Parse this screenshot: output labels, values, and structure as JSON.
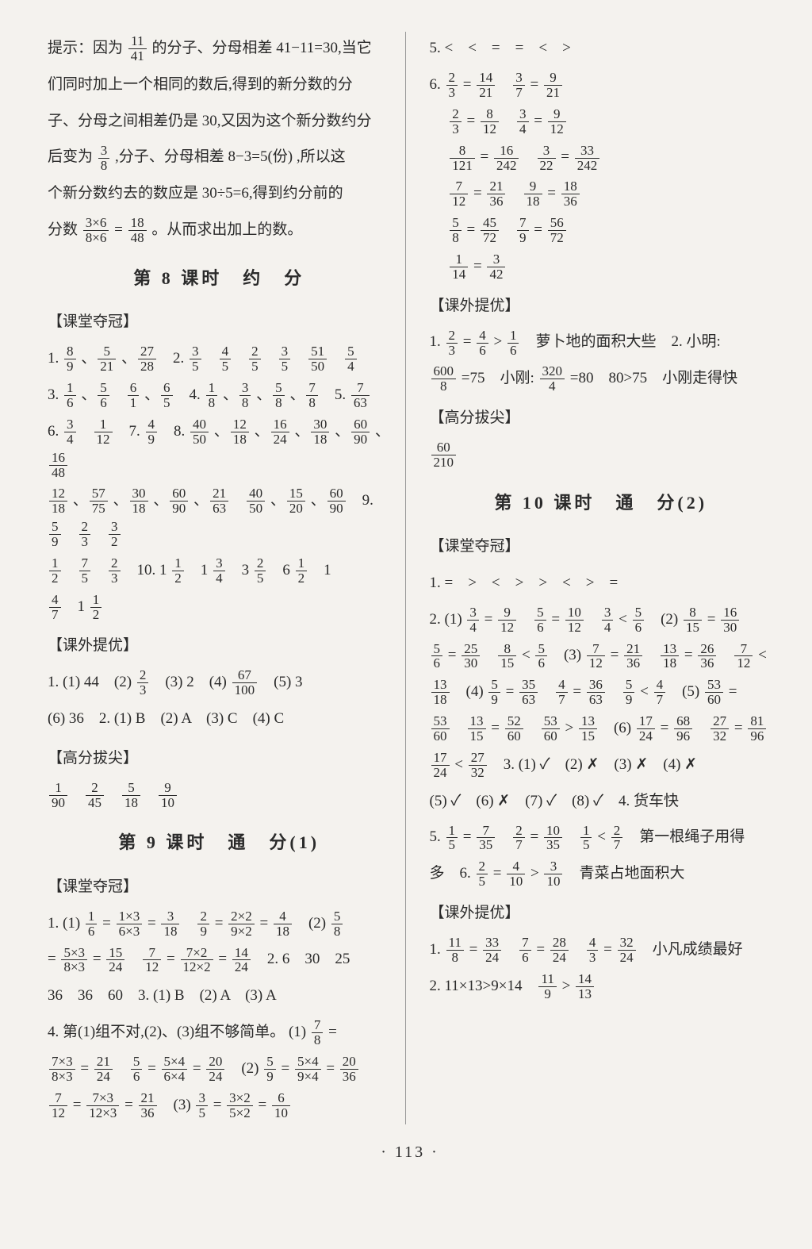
{
  "page_number_label": "· 113 ·",
  "left": {
    "intro_lines": [
      "提示：因为 {11/41} 的分子、分母相差 41−11=30,当它",
      "们同时加上一个相同的数后,得到的新分数的分",
      "子、分母之间相差仍是 30,又因为这个新分数约分",
      "后变为 {3/8} ,分子、分母相差 8−3=5(份) ,所以这",
      "个新分数约去的数应是 30÷5=6,得到约分前的",
      "分数 {3×6/8×6} = {18/48} 。从而求出加上的数。"
    ],
    "lesson8_title": "第 8 课时　约　分",
    "lesson8_kt_label": "【课堂夺冠】",
    "lesson8_kt_lines": [
      "1. {8/9} 、{5/21} 、{27/28}　2. {3/5}　{4/5}　{2/5}　{3/5}　{51/50}　{5/4}",
      "3. {1/6} 、{5/6}　{6/1} 、{6/5}　4. {1/8} 、{3/8} 、{5/8} 、{7/8}　5. {7/63}",
      "6. {3/4}　{1/12}　7. {4/9}　8. {40/50} 、{12/18} 、{16/24} 、{30/18} 、{60/90} 、{16/48}",
      "{12/18} 、{57/75} 、{30/18} 、{60/90} 、{21/63}　{40/50} 、{15/20} 、{60/90}　9. {5/9}　{2/3}　{3/2}",
      "{1/2}　{7/5}　{2/3}　10. 1 {1/2}　1 {3/4}　3 {2/5}　6 {1/2}　1",
      "{4/7}　1 {1/2}"
    ],
    "lesson8_kwty_label": "【课外提优】",
    "lesson8_kwty_lines": [
      "1. (1) 44　(2) {2/3}　(3) 2　(4) {67/100}　(5) 3",
      "(6) 36　2. (1) B　(2) A　(3) C　(4) C"
    ],
    "lesson8_gfbj_label": "【高分拔尖】",
    "lesson8_gfbj_lines": [
      "{1/90}　{2/45}　{5/18}　{9/10}"
    ],
    "lesson9_title": "第 9 课时　通　分(1)",
    "lesson9_kt_label": "【课堂夺冠】",
    "lesson9_kt_lines": [
      "1. (1) {1/6} = {1×3/6×3} = {3/18}　{2/9} = {2×2/9×2} = {4/18}　(2) {5/8}",
      "= {5×3/8×3} = {15/24}　{7/12} = {7×2/12×2} = {14/24}　2. 6　30　25",
      "36　36　60　3. (1) B　(2) A　(3) A",
      "4. 第(1)组不对,(2)、(3)组不够简单。 (1) {7/8} =",
      "{7×3/8×3} = {21/24}　{5/6} = {5×4/6×4} = {20/24}　(2) {5/9} = {5×4/9×4} = {20/36}",
      "{7/12} = {7×3/12×3} = {21/36}　(3) {3/5} = {3×2/5×2} = {6/10}"
    ]
  },
  "right": {
    "q5_line": "5. <　<　=　=　<　>",
    "q6_lines": [
      "6. {2/3} = {14/21}　{3/7} = {9/21}",
      "　 {2/3} = {8/12}　{3/4} = {9/12}",
      "　 {8/121} = {16/242}　{3/22} = {33/242}",
      "　 {7/12} = {21/36}　{9/18} = {18/36}",
      "　 {5/8} = {45/72}　{7/9} = {56/72}",
      "　 {1/14} = {3/42}"
    ],
    "kwty_label": "【课外提优】",
    "kwty_lines": [
      "1. {2/3} = {4/6} > {1/6}　萝卜地的面积大些　2. 小明:",
      "{600/8} =75　小刚: {320/4} =80　80>75　小刚走得快"
    ],
    "gfbj_label": "【高分拔尖】",
    "gfbj_lines": [
      "{60/210}"
    ],
    "lesson10_title": "第 10 课时　通　分(2)",
    "lesson10_kt_label": "【课堂夺冠】",
    "lesson10_kt_lines": [
      "1. =　>　<　>　>　<　>　=",
      "2. (1) {3/4} = {9/12}　{5/6} = {10/12}　{3/4} < {5/6}　(2) {8/15} = {16/30}",
      "{5/6} = {25/30}　{8/15} < {5/6}　(3) {7/12} = {21/36}　{13/18} = {26/36}　{7/12} <",
      "{13/18}　(4) {5/9} = {35/63}　{4/7} = {36/63}　{5/9} < {4/7}　(5) {53/60} =",
      "{53/60}　{13/15} = {52/60}　{53/60} > {13/15}　(6) {17/24} = {68/96}　{27/32} = {81/96}",
      "{17/24} < {27/32}　3. (1) ✓　(2) ✗　(3) ✗　(4) ✗",
      "(5) ✓　(6) ✗　(7) ✓　(8) ✓　4. 货车快",
      "5. {1/5} = {7/35}　{2/7} = {10/35}　{1/5} < {2/7}　第一根绳子用得",
      "多　6. {2/5} = {4/10} > {3/10}　青菜占地面积大"
    ],
    "lesson10_kwty_label": "【课外提优】",
    "lesson10_kwty_lines": [
      "1. {11/8} = {33/24}　{7/6} = {28/24}　{4/3} = {32/24}　小凡成绩最好",
      "2. 11×13>9×14　{11/9} > {14/13}"
    ]
  }
}
